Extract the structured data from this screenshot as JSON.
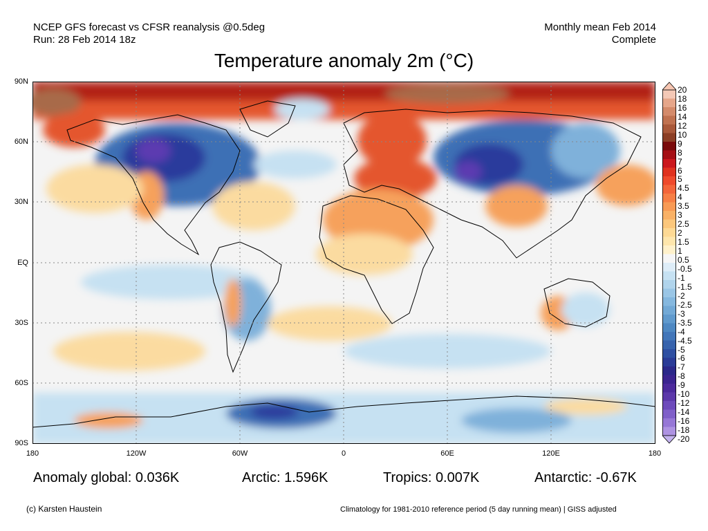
{
  "header": {
    "line1_left": "NCEP GFS forecast vs CFSR reanalysis @0.5deg",
    "line2_left": "Run: 28 Feb 2014 18z",
    "line1_right": "Monthly mean Feb 2014",
    "line2_right": "Complete"
  },
  "title": "Temperature anomaly 2m (°C)",
  "map": {
    "lat_labels": [
      "90N",
      "60N",
      "30N",
      "EQ",
      "30S",
      "60S",
      "90S"
    ],
    "lon_labels": [
      "180",
      "120W",
      "60W",
      "0",
      "60E",
      "120E",
      "180"
    ],
    "colors": {
      "neutral": "#f4f4f4",
      "warm_light": "#fbdba0",
      "warm_mid": "#f6a15c",
      "warm_strong": "#e4572e",
      "warm_extreme": "#b22212",
      "warm_brown": "#a86a4a",
      "cold_light": "#c6e1f2",
      "cold_mid": "#7fb1da",
      "cold_strong": "#3d6fb5",
      "cold_extreme": "#2a3b9c",
      "cold_purple": "#5b3ab0",
      "coast": "#000000",
      "grid": "#888888"
    }
  },
  "colorbar": {
    "labels": [
      "20",
      "18",
      "16",
      "14",
      "12",
      "10",
      "9",
      "8",
      "7",
      "6",
      "5",
      "4.5",
      "4",
      "3.5",
      "3",
      "2.5",
      "2",
      "1.5",
      "1",
      "0.5",
      "-0.5",
      "-1",
      "-1.5",
      "-2",
      "-2.5",
      "-3",
      "-3.5",
      "-4",
      "-4.5",
      "-5",
      "-6",
      "-7",
      "-8",
      "-9",
      "-10",
      "-12",
      "-14",
      "-16",
      "-18",
      "-20"
    ],
    "colors": [
      "#f4c8b6",
      "#e6a68a",
      "#d48b6b",
      "#c07250",
      "#a9593a",
      "#8c3f25",
      "#7a0a0a",
      "#a50f15",
      "#cb181d",
      "#e0321f",
      "#ef4a2c",
      "#f4653a",
      "#f77f45",
      "#f89a55",
      "#f9b166",
      "#fbc77c",
      "#fdd994",
      "#fee6ac",
      "#fff1cb",
      "#f6f6f6",
      "#deedf8",
      "#c6e1f2",
      "#b0d4ec",
      "#9ac6e6",
      "#85b8df",
      "#72a9d6",
      "#609acd",
      "#4e88c2",
      "#4276b9",
      "#3763ad",
      "#2e4fa2",
      "#2a3b97",
      "#2b288a",
      "#3b2490",
      "#4c2a9c",
      "#5c38aa",
      "#6d4abb",
      "#8060c9",
      "#9677d6",
      "#ae93e2"
    ],
    "top_color": "#f7c6b2",
    "bottom_color": "#c3b2ee"
  },
  "stats": {
    "global": "Anomaly global: 0.036K",
    "arctic": "Arctic: 1.596K",
    "tropics": "Tropics: 0.007K",
    "antarctic": "Antarctic: -0.67K"
  },
  "footer": {
    "credit": "(c) Karsten Haustein",
    "note": "Climatology for 1981-2010 reference period (5 day running mean) | GISS adjusted"
  }
}
